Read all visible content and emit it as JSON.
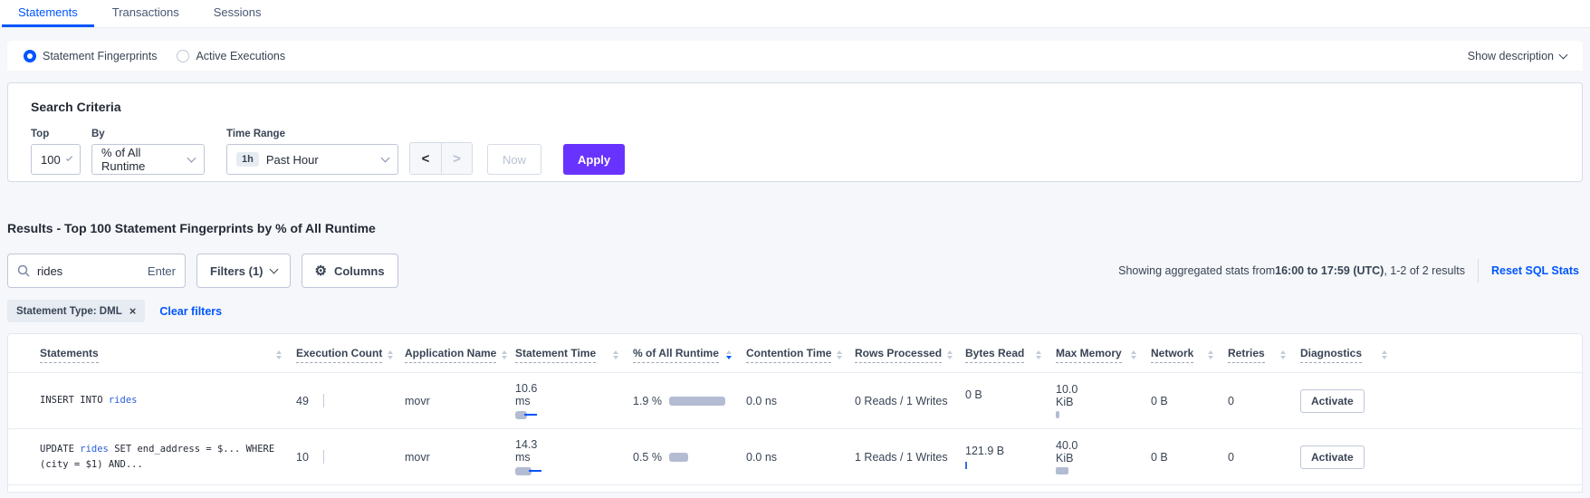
{
  "tabs": [
    {
      "label": "Statements"
    },
    {
      "label": "Transactions"
    },
    {
      "label": "Sessions"
    }
  ],
  "view_toggle": {
    "options": [
      {
        "label": "Statement Fingerprints",
        "selected": true
      },
      {
        "label": "Active Executions",
        "selected": false
      }
    ],
    "show_description_label": "Show description"
  },
  "search_criteria": {
    "title": "Search Criteria",
    "top": {
      "label": "Top",
      "value": "100"
    },
    "by": {
      "label": "By",
      "value": "% of All Runtime"
    },
    "time_range": {
      "label": "Time Range",
      "badge": "1h",
      "value": "Past Hour"
    },
    "prev_label": "<",
    "next_label": ">",
    "now_label": "Now",
    "apply_label": "Apply"
  },
  "results": {
    "heading": "Results - Top 100 Statement Fingerprints by % of All Runtime",
    "search": {
      "value": "rides",
      "enter_label": "Enter"
    },
    "filters_label": "Filters (1)",
    "columns_label": "Columns",
    "gear_icon": "⚙",
    "stats_prefix": "Showing aggregated stats from ",
    "stats_bold": "16:00 to 17:59 (UTC)",
    "stats_suffix": ", 1-2 of 2 results",
    "reset_label": "Reset SQL Stats",
    "chip_label": "Statement Type: DML",
    "chip_close": "×",
    "clear_filters_label": "Clear filters"
  },
  "table": {
    "columns": [
      {
        "label": "Statements"
      },
      {
        "label": "Execution Count"
      },
      {
        "label": "Application Name"
      },
      {
        "label": "Statement Time"
      },
      {
        "label": "% of All Runtime",
        "sorted": "desc"
      },
      {
        "label": "Contention Time"
      },
      {
        "label": "Rows Processed"
      },
      {
        "label": "Bytes Read"
      },
      {
        "label": "Max Memory"
      },
      {
        "label": "Network"
      },
      {
        "label": "Retries"
      },
      {
        "label": "Diagnostics"
      }
    ],
    "rows": [
      {
        "statement": {
          "prefix": "INSERT INTO ",
          "link": "rides",
          "suffix": ""
        },
        "execution_count": "49",
        "application_name": "movr",
        "statement_time": "10.6 ms",
        "runtime_pct": "1.9 %",
        "contention_time": "0.0 ns",
        "rows_processed": "0 Reads / 1 Writes",
        "bytes_read": "0 B",
        "max_memory": "10.0 KiB",
        "network": "0 B",
        "retries": "0",
        "diagnostics_label": "Activate",
        "bars": {
          "time_bar": 13,
          "runtime_bar": 62,
          "bytes_bar": 0,
          "mem_bar": 4
        }
      },
      {
        "statement": {
          "prefix": "UPDATE ",
          "link": "rides",
          "suffix": " SET end_address = $... WHERE (city = $1) AND..."
        },
        "execution_count": "10",
        "application_name": "movr",
        "statement_time": "14.3 ms",
        "runtime_pct": "0.5 %",
        "contention_time": "0.0 ns",
        "rows_processed": "1 Reads / 1 Writes",
        "bytes_read": "121.9 B",
        "max_memory": "40.0 KiB",
        "network": "0 B",
        "retries": "0",
        "diagnostics_label": "Activate",
        "bars": {
          "time_bar": 18,
          "runtime_bar": 21,
          "bytes_bar": 2,
          "mem_bar": 14
        }
      }
    ]
  }
}
